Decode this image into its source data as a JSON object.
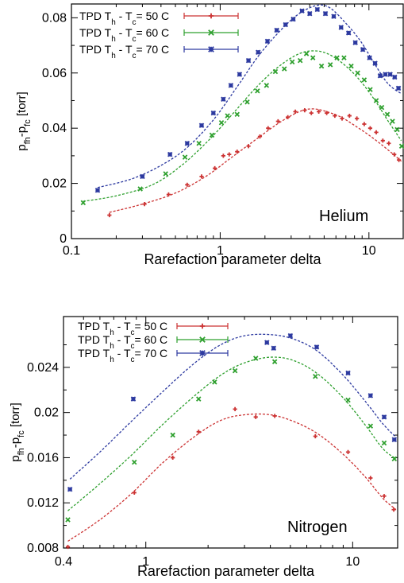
{
  "chart_data": [
    {
      "type": "scatter",
      "gas_label": "Helium",
      "xlabel": "Rarefaction parameter delta",
      "ylabel": {
        "main": "p",
        "sub1": "fh",
        "mid": "-p",
        "sub2": "fc",
        "unit": "[torr]"
      },
      "x_scale": "log",
      "xlim": [
        0.1,
        17
      ],
      "ylim": [
        0,
        0.085
      ],
      "x_ticks": [
        {
          "v": 0.1,
          "label": "0.1"
        },
        {
          "v": 1,
          "label": "1"
        },
        {
          "v": 10,
          "label": "10"
        }
      ],
      "y_ticks": [
        {
          "v": 0,
          "label": "0"
        },
        {
          "v": 0.02,
          "label": "0.02"
        },
        {
          "v": 0.04,
          "label": "0.04"
        },
        {
          "v": 0.06,
          "label": "0.06"
        },
        {
          "v": 0.08,
          "label": "0.08"
        }
      ],
      "legend_position": "top-left",
      "series": [
        {
          "legend": {
            "prefix": "TPD T",
            "sub1": "h",
            "mid": " - T",
            "sub2": "c",
            "suffix": "= 50 C"
          },
          "color": "#cc3333",
          "marker": "plus",
          "points": [
            [
              0.18,
              0.0085
            ],
            [
              0.31,
              0.0125
            ],
            [
              0.45,
              0.016
            ],
            [
              0.6,
              0.0195
            ],
            [
              0.75,
              0.0225
            ],
            [
              0.92,
              0.0255
            ],
            [
              1.05,
              0.03
            ],
            [
              1.15,
              0.0305
            ],
            [
              1.3,
              0.0315
            ],
            [
              1.55,
              0.0335
            ],
            [
              1.85,
              0.037
            ],
            [
              2.1,
              0.04
            ],
            [
              2.45,
              0.0425
            ],
            [
              2.85,
              0.044
            ],
            [
              3.2,
              0.046
            ],
            [
              3.7,
              0.0465
            ],
            [
              4.1,
              0.0455
            ],
            [
              4.6,
              0.046
            ],
            [
              5.2,
              0.0455
            ],
            [
              5.9,
              0.0445
            ],
            [
              6.6,
              0.0435
            ],
            [
              7.4,
              0.0445
            ],
            [
              8.3,
              0.0435
            ],
            [
              9.3,
              0.0415
            ],
            [
              10.2,
              0.04
            ],
            [
              11.2,
              0.0385
            ],
            [
              12.4,
              0.0355
            ],
            [
              13.6,
              0.0345
            ],
            [
              14.8,
              0.0305
            ],
            [
              15.9,
              0.0285
            ]
          ],
          "fit": [
            [
              0.18,
              0.0095
            ],
            [
              0.3,
              0.0125
            ],
            [
              0.5,
              0.0165
            ],
            [
              0.8,
              0.0225
            ],
            [
              1.2,
              0.0295
            ],
            [
              1.8,
              0.0365
            ],
            [
              2.5,
              0.042
            ],
            [
              3.4,
              0.046
            ],
            [
              4.2,
              0.047
            ],
            [
              5.2,
              0.046
            ],
            [
              6.5,
              0.044
            ],
            [
              8,
              0.041
            ],
            [
              10,
              0.0375
            ],
            [
              12.5,
              0.0335
            ],
            [
              15,
              0.03
            ],
            [
              16.5,
              0.028
            ]
          ]
        },
        {
          "legend": {
            "prefix": "TPD T",
            "sub1": "h",
            "mid": " - T",
            "sub2": "c",
            "suffix": "= 60 C"
          },
          "color": "#2fa02f",
          "marker": "cross",
          "points": [
            [
              0.12,
              0.013
            ],
            [
              0.29,
              0.018
            ],
            [
              0.43,
              0.0235
            ],
            [
              0.58,
              0.0295
            ],
            [
              0.72,
              0.0345
            ],
            [
              0.88,
              0.0375
            ],
            [
              1.02,
              0.042
            ],
            [
              1.12,
              0.0445
            ],
            [
              1.3,
              0.045
            ],
            [
              1.52,
              0.0495
            ],
            [
              1.78,
              0.0535
            ],
            [
              2.05,
              0.0555
            ],
            [
              2.35,
              0.0605
            ],
            [
              2.7,
              0.0615
            ],
            [
              3.05,
              0.064
            ],
            [
              3.45,
              0.0645
            ],
            [
              3.8,
              0.067
            ],
            [
              4.2,
              0.0655
            ],
            [
              4.8,
              0.0625
            ],
            [
              5.5,
              0.063
            ],
            [
              6.1,
              0.0655
            ],
            [
              6.8,
              0.0655
            ],
            [
              7.6,
              0.0625
            ],
            [
              8.4,
              0.06
            ],
            [
              9.3,
              0.0575
            ],
            [
              10.2,
              0.054
            ],
            [
              11.2,
              0.05
            ],
            [
              12.2,
              0.0475
            ],
            [
              13.3,
              0.045
            ],
            [
              14.4,
              0.0425
            ],
            [
              15.5,
              0.0395
            ],
            [
              16.6,
              0.0335
            ]
          ],
          "fit": [
            [
              0.12,
              0.0135
            ],
            [
              0.2,
              0.0155
            ],
            [
              0.35,
              0.0195
            ],
            [
              0.55,
              0.0265
            ],
            [
              0.85,
              0.036
            ],
            [
              1.25,
              0.046
            ],
            [
              1.8,
              0.0555
            ],
            [
              2.5,
              0.0625
            ],
            [
              3.4,
              0.067
            ],
            [
              4.4,
              0.068
            ],
            [
              5.5,
              0.0665
            ],
            [
              7,
              0.0625
            ],
            [
              8.8,
              0.057
            ],
            [
              11,
              0.05
            ],
            [
              13.5,
              0.0425
            ],
            [
              16.5,
              0.0355
            ]
          ]
        },
        {
          "legend": {
            "prefix": "TPD T",
            "sub1": "h",
            "mid": " - T",
            "sub2": "c",
            "suffix": "= 70 C"
          },
          "color": "#2d3aa0",
          "marker": "star",
          "points": [
            [
              0.15,
              0.0175
            ],
            [
              0.3,
              0.0225
            ],
            [
              0.46,
              0.0305
            ],
            [
              0.6,
              0.0345
            ],
            [
              0.75,
              0.041
            ],
            [
              0.9,
              0.0455
            ],
            [
              1.05,
              0.0505
            ],
            [
              1.18,
              0.0555
            ],
            [
              1.35,
              0.0595
            ],
            [
              1.55,
              0.0645
            ],
            [
              1.8,
              0.0675
            ],
            [
              2.08,
              0.0715
            ],
            [
              2.4,
              0.0755
            ],
            [
              2.75,
              0.0775
            ],
            [
              3.1,
              0.0795
            ],
            [
              3.55,
              0.0825
            ],
            [
              4.0,
              0.0815
            ],
            [
              4.5,
              0.083
            ],
            [
              5.1,
              0.0815
            ],
            [
              5.8,
              0.0805
            ],
            [
              6.5,
              0.0765
            ],
            [
              7.3,
              0.0745
            ],
            [
              8.1,
              0.071
            ],
            [
              9.1,
              0.0685
            ],
            [
              10.1,
              0.0655
            ],
            [
              11.0,
              0.0635
            ],
            [
              11.9,
              0.059
            ],
            [
              12.9,
              0.0595
            ],
            [
              13.9,
              0.0595
            ],
            [
              14.9,
              0.0585
            ],
            [
              15.8,
              0.0545
            ]
          ],
          "fit": [
            [
              0.15,
              0.0185
            ],
            [
              0.25,
              0.0215
            ],
            [
              0.4,
              0.0265
            ],
            [
              0.6,
              0.033
            ],
            [
              0.9,
              0.043
            ],
            [
              1.3,
              0.055
            ],
            [
              1.8,
              0.066
            ],
            [
              2.5,
              0.075
            ],
            [
              3.4,
              0.0815
            ],
            [
              4.5,
              0.0845
            ],
            [
              5.5,
              0.0835
            ],
            [
              7,
              0.078
            ],
            [
              8.8,
              0.0715
            ],
            [
              11,
              0.063
            ],
            [
              13.5,
              0.056
            ],
            [
              16.5,
              0.0525
            ]
          ]
        }
      ]
    },
    {
      "type": "scatter",
      "gas_label": "Nitrogen",
      "xlabel": "Rarefaction parameter delta",
      "ylabel": {
        "main": "p",
        "sub1": "fh",
        "mid": "-p",
        "sub2": "fc",
        "unit": "[torr]"
      },
      "x_scale": "log",
      "xlim": [
        0.4,
        16.5
      ],
      "ylim": [
        0.008,
        0.0285
      ],
      "x_ticks": [
        {
          "v": 0.4,
          "label": "0.4"
        },
        {
          "v": 1,
          "label": "1"
        },
        {
          "v": 10,
          "label": "10"
        }
      ],
      "y_ticks": [
        {
          "v": 0.008,
          "label": "0.008"
        },
        {
          "v": 0.012,
          "label": "0.012"
        },
        {
          "v": 0.016,
          "label": "0.016"
        },
        {
          "v": 0.02,
          "label": "0.02"
        },
        {
          "v": 0.024,
          "label": "0.024"
        }
      ],
      "legend_position": "top-left",
      "series": [
        {
          "legend": {
            "prefix": "TPD T",
            "sub1": "h",
            "mid": " - T",
            "sub2": "c",
            "suffix": "= 50 C"
          },
          "color": "#cc3333",
          "marker": "plus",
          "points": [
            [
              0.42,
              0.0081
            ],
            [
              0.88,
              0.0129
            ],
            [
              1.35,
              0.016
            ],
            [
              1.8,
              0.0183
            ],
            [
              2.7,
              0.0203
            ],
            [
              3.4,
              0.0196
            ],
            [
              4.2,
              0.0197
            ],
            [
              6.6,
              0.0179
            ],
            [
              9.5,
              0.0165
            ],
            [
              12.2,
              0.0142
            ],
            [
              14.2,
              0.0126
            ],
            [
              15.8,
              0.0114
            ]
          ],
          "fit": [
            [
              0.42,
              0.0086
            ],
            [
              0.6,
              0.0105
            ],
            [
              0.85,
              0.0128
            ],
            [
              1.2,
              0.0155
            ],
            [
              1.7,
              0.0178
            ],
            [
              2.3,
              0.0193
            ],
            [
              3.0,
              0.0198
            ],
            [
              4.0,
              0.0198
            ],
            [
              5.2,
              0.0192
            ],
            [
              6.8,
              0.0181
            ],
            [
              9,
              0.0163
            ],
            [
              11.5,
              0.0143
            ],
            [
              14,
              0.0124
            ],
            [
              16.2,
              0.0114
            ]
          ]
        },
        {
          "legend": {
            "prefix": "TPD T",
            "sub1": "h",
            "mid": " - T",
            "sub2": "c",
            "suffix": "= 60 C"
          },
          "color": "#2fa02f",
          "marker": "cross",
          "points": [
            [
              0.42,
              0.0105
            ],
            [
              0.88,
              0.0156
            ],
            [
              1.35,
              0.018
            ],
            [
              1.8,
              0.0212
            ],
            [
              2.15,
              0.0227
            ],
            [
              2.7,
              0.0237
            ],
            [
              3.4,
              0.0248
            ],
            [
              4.2,
              0.0245
            ],
            [
              6.6,
              0.0232
            ],
            [
              9.5,
              0.0211
            ],
            [
              12.2,
              0.0188
            ],
            [
              14.2,
              0.0173
            ],
            [
              15.9,
              0.0159
            ]
          ],
          "fit": [
            [
              0.42,
              0.0113
            ],
            [
              0.6,
              0.0137
            ],
            [
              0.85,
              0.0162
            ],
            [
              1.2,
              0.0189
            ],
            [
              1.7,
              0.0214
            ],
            [
              2.3,
              0.0233
            ],
            [
              3.0,
              0.0244
            ],
            [
              4.0,
              0.0249
            ],
            [
              5.2,
              0.0246
            ],
            [
              6.8,
              0.0234
            ],
            [
              9,
              0.0213
            ],
            [
              11.5,
              0.0189
            ],
            [
              14,
              0.0168
            ],
            [
              16.2,
              0.0159
            ]
          ]
        },
        {
          "legend": {
            "prefix": "TPD T",
            "sub1": "h",
            "mid": " - T",
            "sub2": "c",
            "suffix": "= 70 C"
          },
          "color": "#2d3aa0",
          "marker": "star",
          "points": [
            [
              0.43,
              0.0132
            ],
            [
              0.87,
              0.0212
            ],
            [
              3.85,
              0.0262
            ],
            [
              4.15,
              0.0257
            ],
            [
              5.0,
              0.0268
            ],
            [
              6.7,
              0.0258
            ],
            [
              9.5,
              0.0235
            ],
            [
              12.2,
              0.0215
            ],
            [
              14.2,
              0.0196
            ],
            [
              15.9,
              0.0176
            ]
          ],
          "fit": [
            [
              0.43,
              0.0141
            ],
            [
              0.6,
              0.0165
            ],
            [
              0.85,
              0.0192
            ],
            [
              1.2,
              0.0218
            ],
            [
              1.7,
              0.0243
            ],
            [
              2.3,
              0.026
            ],
            [
              3.0,
              0.0268
            ],
            [
              4.0,
              0.0269
            ],
            [
              5.2,
              0.0265
            ],
            [
              6.8,
              0.0254
            ],
            [
              9,
              0.0233
            ],
            [
              11.5,
              0.021
            ],
            [
              14,
              0.019
            ],
            [
              16.2,
              0.0178
            ]
          ]
        }
      ]
    }
  ]
}
